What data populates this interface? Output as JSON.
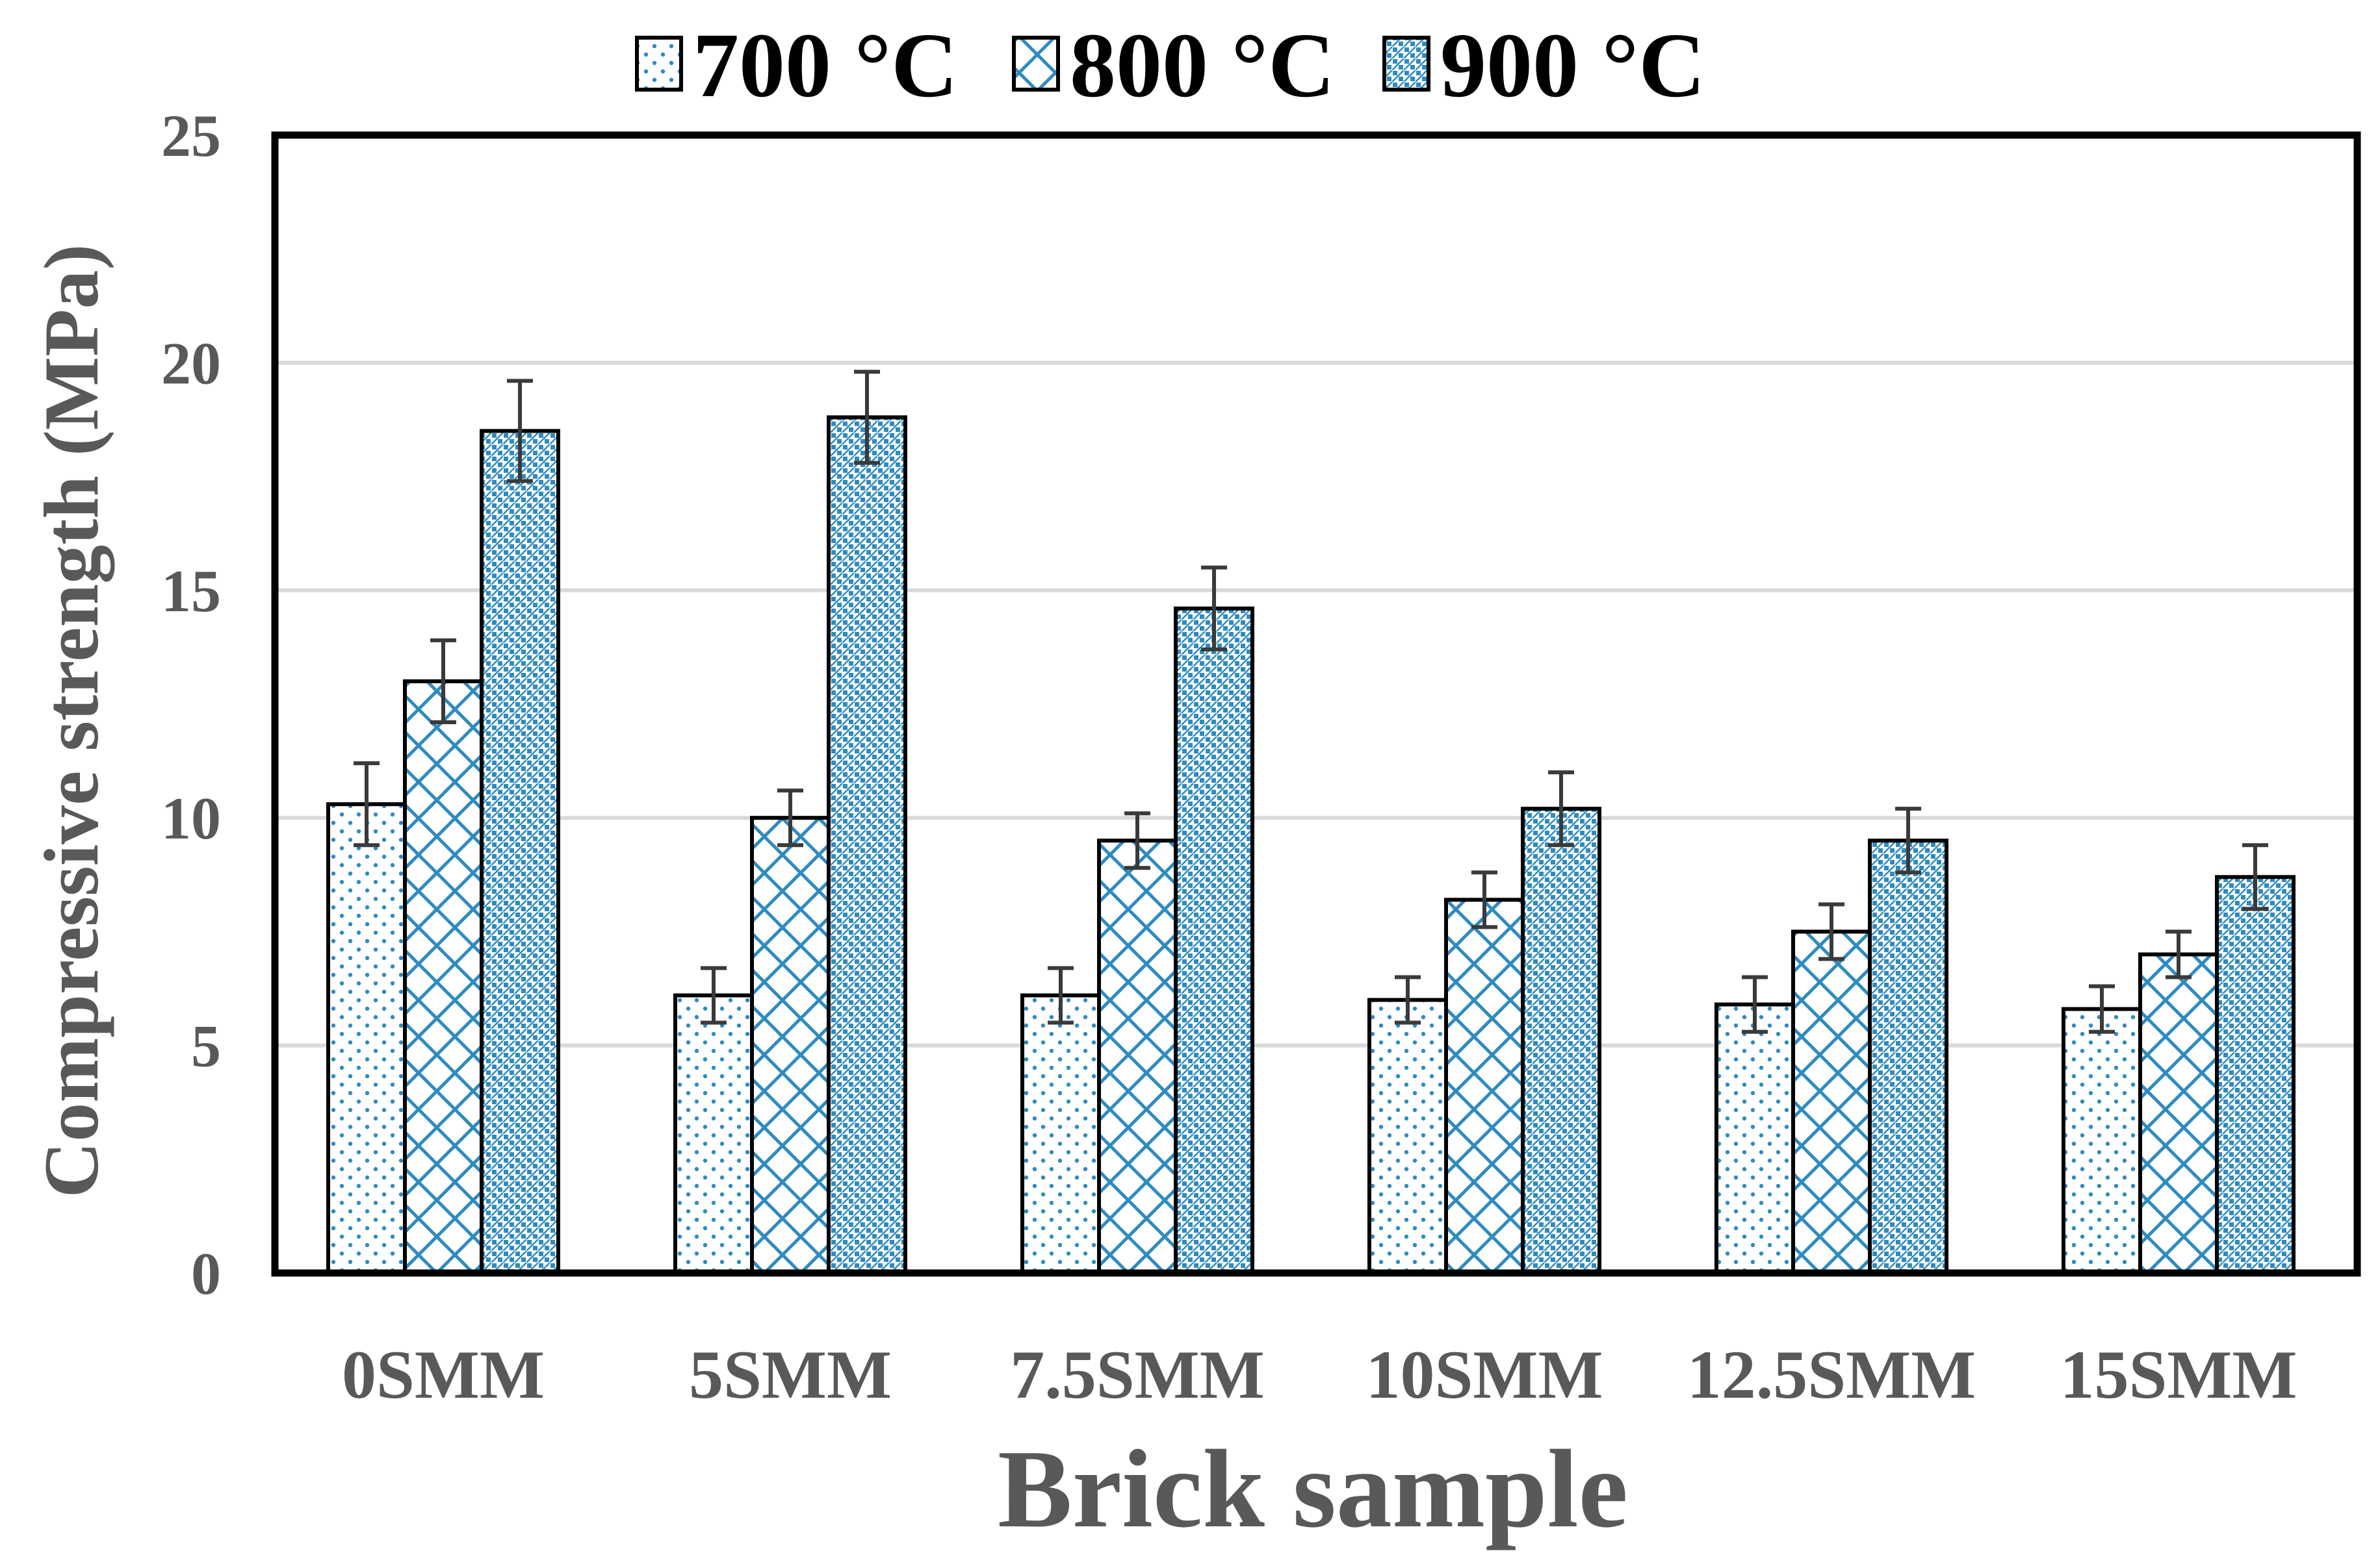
{
  "chart_data": {
    "type": "bar",
    "title": "",
    "xlabel": "Brick sample",
    "ylabel": "Compressive strength (MPa)",
    "ylim": [
      0,
      25
    ],
    "yticks": [
      0,
      5,
      10,
      15,
      20,
      25
    ],
    "grid": true,
    "legend_position": "top",
    "categories": [
      "0SMM",
      "5SMM",
      "7.5SMM",
      "10SMM",
      "12.5SMM",
      "15SMM"
    ],
    "series": [
      {
        "name": "700 °C",
        "pattern": "dots",
        "values": [
          10.3,
          6.1,
          6.1,
          6.0,
          5.9,
          5.8
        ],
        "errors": [
          0.9,
          0.6,
          0.6,
          0.5,
          0.6,
          0.5
        ]
      },
      {
        "name": "800 °C",
        "pattern": "diamond-lattice",
        "values": [
          13.0,
          10.0,
          9.5,
          8.2,
          7.5,
          7.0
        ],
        "errors": [
          0.9,
          0.6,
          0.6,
          0.6,
          0.6,
          0.5
        ]
      },
      {
        "name": "900 °C",
        "pattern": "fine-check",
        "values": [
          18.5,
          18.8,
          14.6,
          10.2,
          9.5,
          8.7
        ],
        "errors": [
          1.1,
          1.0,
          0.9,
          0.8,
          0.7,
          0.7
        ]
      }
    ],
    "colors": {
      "pattern": "#2e8bc0",
      "border": "#000000",
      "grid": "#d9d9d9",
      "text": "#595959",
      "error_bar": "#3a3a3a"
    }
  }
}
